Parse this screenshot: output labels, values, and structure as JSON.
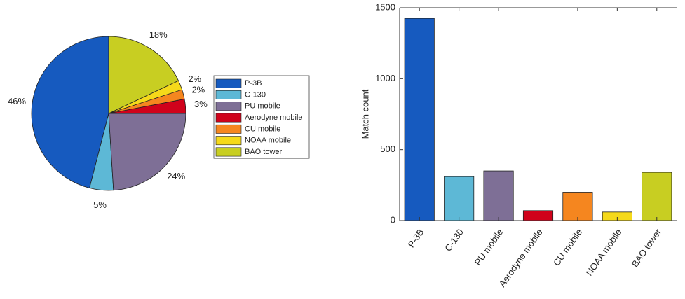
{
  "chart_data": [
    {
      "type": "pie",
      "categories": [
        "P-3B",
        "C-130",
        "PU mobile",
        "Aerodyne mobile",
        "CU mobile",
        "NOAA mobile",
        "BAO tower"
      ],
      "values": [
        46,
        5,
        24,
        3,
        2,
        2,
        18
      ],
      "value_labels": [
        "46%",
        "5%",
        "24%",
        "3%",
        "2%",
        "2%",
        "18%"
      ],
      "colors": [
        "#165abf",
        "#5db8d6",
        "#7e6f96",
        "#d0021b",
        "#f5861f",
        "#f5d91a",
        "#c8ce22"
      ],
      "legend": "right"
    },
    {
      "type": "bar",
      "categories": [
        "P-3B",
        "C-130",
        "PU mobile",
        "Aerodyne mobile",
        "CU mobile",
        "NOAA mobile",
        "BAO tower"
      ],
      "values": [
        1425,
        310,
        350,
        70,
        200,
        60,
        340
      ],
      "colors": [
        "#165abf",
        "#5db8d6",
        "#7e6f96",
        "#d0021b",
        "#f5861f",
        "#f5d91a",
        "#c8ce22"
      ],
      "y_label": "Match count",
      "ylim": [
        0,
        1500
      ],
      "yticks": [
        0,
        500,
        1000,
        1500
      ]
    }
  ]
}
